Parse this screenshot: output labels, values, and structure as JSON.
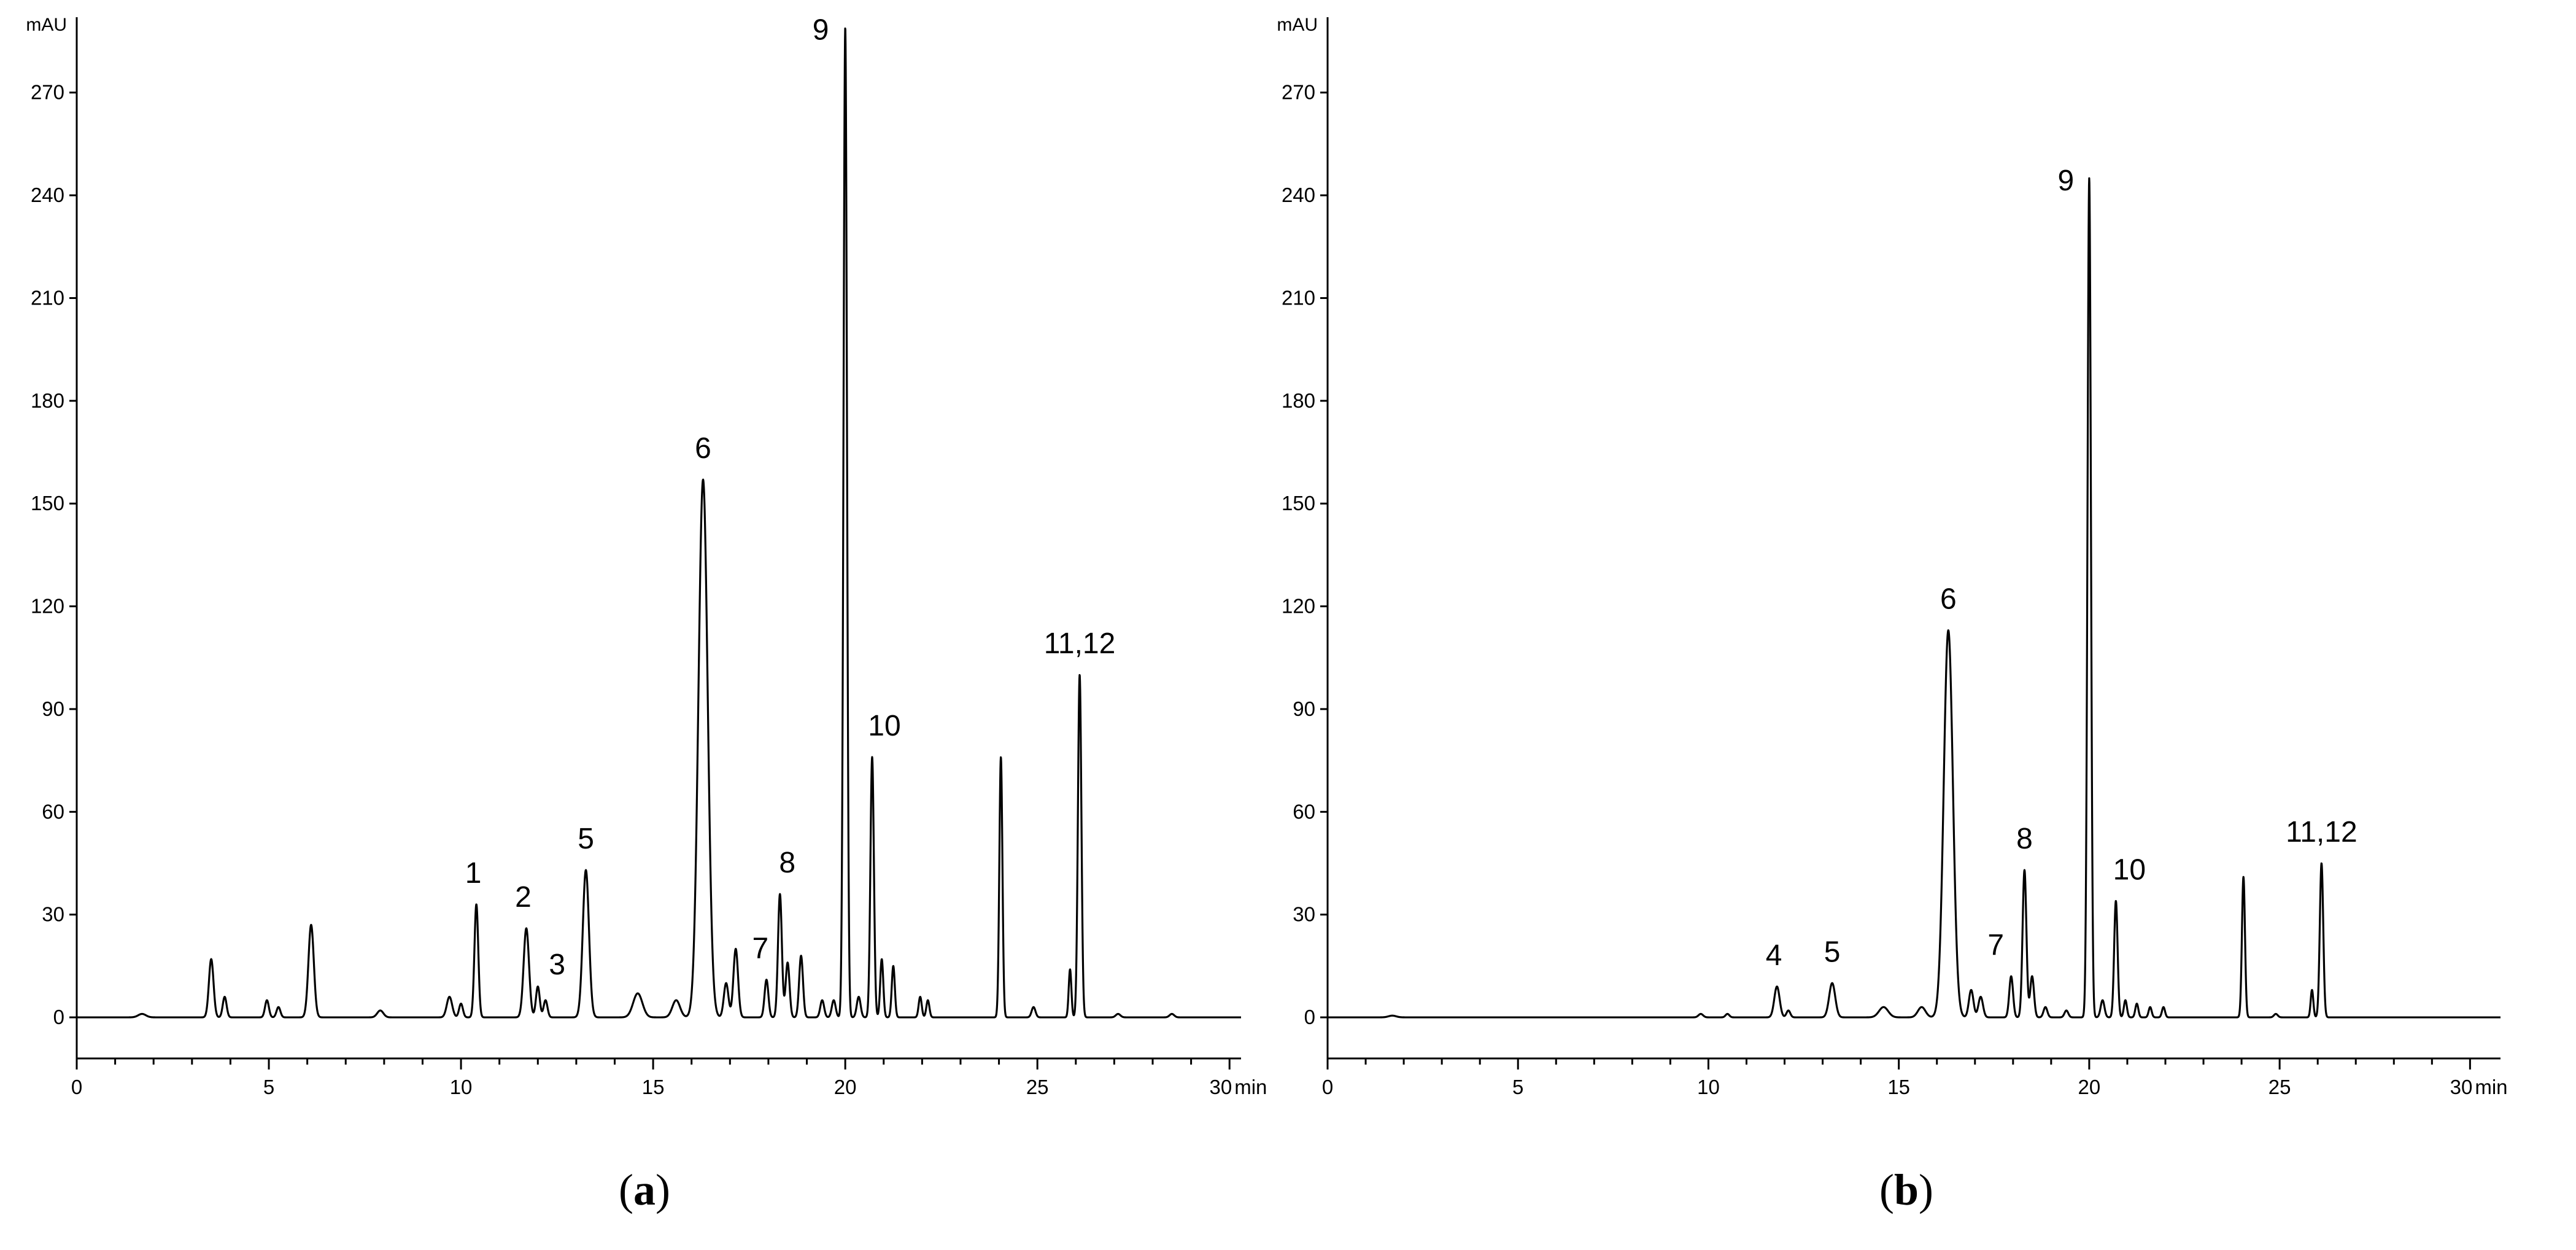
{
  "chart_data": [
    {
      "id": "a",
      "type": "line",
      "caption_letter": "a",
      "ylabel": "mAU",
      "xlabel": "min",
      "xlim": [
        0,
        30.3
      ],
      "ylim": [
        -12,
        292
      ],
      "x_ticks": [
        0,
        5,
        10,
        15,
        20,
        25,
        30
      ],
      "x_tick_labels": [
        "0",
        "5",
        "10",
        "15",
        "20",
        "25",
        "30"
      ],
      "y_ticks": [
        0,
        30,
        60,
        90,
        120,
        150,
        180,
        210,
        240,
        270
      ],
      "y_tick_labels": [
        "0",
        "30",
        "60",
        "90",
        "120",
        "150",
        "180",
        "210",
        "240",
        "270"
      ],
      "baseline": 0,
      "peaks": [
        {
          "x": 1.7,
          "y": 1,
          "w": 0.1
        },
        {
          "x": 3.5,
          "y": 17,
          "w": 0.06
        },
        {
          "x": 3.85,
          "y": 6,
          "w": 0.05
        },
        {
          "x": 4.95,
          "y": 5,
          "w": 0.05
        },
        {
          "x": 5.25,
          "y": 3,
          "w": 0.05
        },
        {
          "x": 6.1,
          "y": 27,
          "w": 0.07
        },
        {
          "x": 7.9,
          "y": 2,
          "w": 0.08
        },
        {
          "x": 9.7,
          "y": 6,
          "w": 0.07
        },
        {
          "x": 10.0,
          "y": 4,
          "w": 0.05
        },
        {
          "x": 10.4,
          "y": 33,
          "w": 0.05
        },
        {
          "x": 11.7,
          "y": 26,
          "w": 0.07
        },
        {
          "x": 12.0,
          "y": 9,
          "w": 0.05
        },
        {
          "x": 12.2,
          "y": 5,
          "w": 0.05
        },
        {
          "x": 13.25,
          "y": 43,
          "w": 0.08
        },
        {
          "x": 14.6,
          "y": 7,
          "w": 0.12
        },
        {
          "x": 15.6,
          "y": 5,
          "w": 0.1
        },
        {
          "x": 16.3,
          "y": 157,
          "w": 0.12
        },
        {
          "x": 16.9,
          "y": 10,
          "w": 0.06
        },
        {
          "x": 17.15,
          "y": 20,
          "w": 0.06
        },
        {
          "x": 17.95,
          "y": 11,
          "w": 0.05
        },
        {
          "x": 18.3,
          "y": 36,
          "w": 0.05
        },
        {
          "x": 18.5,
          "y": 16,
          "w": 0.05
        },
        {
          "x": 18.85,
          "y": 18,
          "w": 0.05
        },
        {
          "x": 19.4,
          "y": 5,
          "w": 0.05
        },
        {
          "x": 19.7,
          "y": 5,
          "w": 0.05
        },
        {
          "x": 20.0,
          "y": 289,
          "w": 0.045
        },
        {
          "x": 20.35,
          "y": 6,
          "w": 0.05
        },
        {
          "x": 20.7,
          "y": 76,
          "w": 0.045
        },
        {
          "x": 20.95,
          "y": 17,
          "w": 0.04
        },
        {
          "x": 21.25,
          "y": 15,
          "w": 0.04
        },
        {
          "x": 21.95,
          "y": 6,
          "w": 0.04
        },
        {
          "x": 22.15,
          "y": 5,
          "w": 0.04
        },
        {
          "x": 24.05,
          "y": 76,
          "w": 0.04
        },
        {
          "x": 24.9,
          "y": 3,
          "w": 0.05
        },
        {
          "x": 25.85,
          "y": 14,
          "w": 0.035
        },
        {
          "x": 26.1,
          "y": 100,
          "w": 0.045
        },
        {
          "x": 27.1,
          "y": 1,
          "w": 0.06
        },
        {
          "x": 28.5,
          "y": 1,
          "w": 0.06
        }
      ],
      "peak_labels": [
        {
          "text": "1",
          "x": 10.4,
          "y": 33
        },
        {
          "text": "2",
          "x": 11.7,
          "y": 26
        },
        {
          "text": "3",
          "x": 12.15,
          "y": 9
        },
        {
          "text": "5",
          "x": 13.25,
          "y": 43
        },
        {
          "text": "6",
          "x": 16.3,
          "y": 157
        },
        {
          "text": "7",
          "x": 17.95,
          "y": 11
        },
        {
          "text": "8",
          "x": 18.3,
          "y": 36
        },
        {
          "text": "9",
          "x": 20.0,
          "y": 289
        },
        {
          "text": "10",
          "x": 20.7,
          "y": 76
        },
        {
          "text": "11,12",
          "x": 26.1,
          "y": 100
        }
      ]
    },
    {
      "id": "b",
      "type": "line",
      "caption_letter": "b",
      "ylabel": "mAU",
      "xlabel": "min",
      "xlim": [
        0,
        30.8
      ],
      "ylim": [
        -12,
        292
      ],
      "x_ticks": [
        0,
        5,
        10,
        15,
        20,
        25,
        30
      ],
      "x_tick_labels": [
        "0",
        "5",
        "10",
        "15",
        "20",
        "25",
        "30"
      ],
      "y_ticks": [
        0,
        30,
        60,
        90,
        120,
        150,
        180,
        210,
        240,
        270
      ],
      "y_tick_labels": [
        "0",
        "30",
        "60",
        "90",
        "120",
        "150",
        "180",
        "210",
        "240",
        "270"
      ],
      "baseline": 0,
      "peaks": [
        {
          "x": 1.7,
          "y": 0.5,
          "w": 0.1
        },
        {
          "x": 9.8,
          "y": 1,
          "w": 0.06
        },
        {
          "x": 10.5,
          "y": 1,
          "w": 0.05
        },
        {
          "x": 11.8,
          "y": 9,
          "w": 0.07
        },
        {
          "x": 12.1,
          "y": 2,
          "w": 0.05
        },
        {
          "x": 13.25,
          "y": 10,
          "w": 0.08
        },
        {
          "x": 14.6,
          "y": 3,
          "w": 0.12
        },
        {
          "x": 15.6,
          "y": 3,
          "w": 0.1
        },
        {
          "x": 16.3,
          "y": 113,
          "w": 0.12
        },
        {
          "x": 16.9,
          "y": 8,
          "w": 0.06
        },
        {
          "x": 17.15,
          "y": 6,
          "w": 0.06
        },
        {
          "x": 17.95,
          "y": 12,
          "w": 0.05
        },
        {
          "x": 18.3,
          "y": 43,
          "w": 0.05
        },
        {
          "x": 18.5,
          "y": 12,
          "w": 0.05
        },
        {
          "x": 18.85,
          "y": 3,
          "w": 0.05
        },
        {
          "x": 19.4,
          "y": 2,
          "w": 0.05
        },
        {
          "x": 20.0,
          "y": 245,
          "w": 0.045
        },
        {
          "x": 20.35,
          "y": 5,
          "w": 0.05
        },
        {
          "x": 20.7,
          "y": 34,
          "w": 0.045
        },
        {
          "x": 20.95,
          "y": 5,
          "w": 0.04
        },
        {
          "x": 21.25,
          "y": 4,
          "w": 0.04
        },
        {
          "x": 21.6,
          "y": 3,
          "w": 0.04
        },
        {
          "x": 21.95,
          "y": 3,
          "w": 0.04
        },
        {
          "x": 24.05,
          "y": 41,
          "w": 0.04
        },
        {
          "x": 24.9,
          "y": 1,
          "w": 0.05
        },
        {
          "x": 25.85,
          "y": 8,
          "w": 0.035
        },
        {
          "x": 26.1,
          "y": 45,
          "w": 0.045
        }
      ],
      "peak_labels": [
        {
          "text": "4",
          "x": 11.8,
          "y": 9
        },
        {
          "text": "5",
          "x": 13.25,
          "y": 10
        },
        {
          "text": "6",
          "x": 16.3,
          "y": 113
        },
        {
          "text": "7",
          "x": 17.95,
          "y": 12
        },
        {
          "text": "8",
          "x": 18.3,
          "y": 43
        },
        {
          "text": "9",
          "x": 20.0,
          "y": 245
        },
        {
          "text": "10",
          "x": 20.7,
          "y": 34
        },
        {
          "text": "11,12",
          "x": 26.1,
          "y": 45
        }
      ]
    }
  ]
}
